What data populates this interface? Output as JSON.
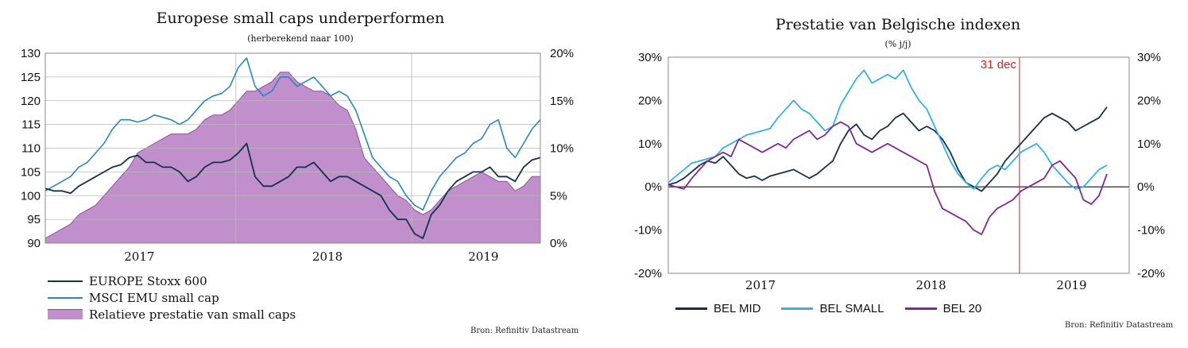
{
  "chart_data": [
    {
      "type": "area+line",
      "title": "Europese small caps underperformen",
      "subtitle": "(herberekend naar 100)",
      "ylim_left": [
        90,
        130
      ],
      "yticks_left": [
        "90",
        "95",
        "100",
        "105",
        "110",
        "115",
        "120",
        "125",
        "130"
      ],
      "ylim_right": [
        0,
        20
      ],
      "yticks_right": [
        "0%",
        "5%",
        "10%",
        "15%",
        "20%"
      ],
      "x_labels": [
        "2017",
        "2018",
        "2019"
      ],
      "grid": true,
      "legend_position": "bottom-left",
      "series": [
        {
          "name": "EUROPE Stoxx 600",
          "axis": "left",
          "color": "#14304f",
          "values": [
            101.5,
            101,
            101,
            100.5,
            102,
            103,
            104,
            105,
            106,
            106.5,
            108,
            108.5,
            107,
            107,
            106,
            106,
            105,
            103,
            104,
            106,
            107,
            107,
            107.5,
            109,
            111,
            104,
            102,
            102,
            103,
            104,
            106,
            106,
            107,
            105,
            103,
            104,
            104,
            103,
            102,
            101,
            100,
            97,
            95,
            95,
            92,
            91,
            96,
            98,
            101,
            103,
            104,
            105,
            105,
            106,
            104,
            104,
            103,
            106,
            107.5,
            108
          ]
        },
        {
          "name": "MSCI EMU small cap",
          "axis": "left",
          "color": "#2a86ba",
          "values": [
            101,
            102,
            103,
            104,
            106,
            107,
            109,
            111,
            114,
            116,
            116,
            115.5,
            116,
            117,
            116.5,
            116,
            115,
            116,
            118,
            120,
            121,
            121.5,
            123,
            127,
            129,
            123,
            121,
            122,
            125,
            125,
            123,
            124,
            125,
            123,
            121,
            122,
            121,
            118,
            113,
            108,
            106,
            104,
            103,
            100,
            98,
            97,
            101,
            104,
            106,
            108,
            109,
            111,
            112,
            115,
            116,
            110,
            108,
            111,
            114,
            116
          ]
        },
        {
          "name": "Relatieve prestatie van small caps",
          "axis": "right",
          "color": "#c08fcc",
          "stroke": "#8d4f9b",
          "values": [
            0.5,
            1,
            1.5,
            2,
            3,
            3.5,
            4,
            5,
            6,
            7,
            8,
            9.5,
            10,
            10.5,
            11,
            11.5,
            11.5,
            11.5,
            12,
            13,
            13.5,
            13.5,
            14,
            15,
            16,
            16,
            16.5,
            17,
            18,
            18,
            17,
            16.5,
            16,
            16,
            15.5,
            14.5,
            14,
            12,
            9,
            8,
            7,
            6,
            5,
            4.5,
            3.5,
            3,
            3.5,
            4.5,
            5.5,
            6,
            6.5,
            7,
            7.5,
            7,
            6.5,
            6.5,
            5.5,
            6,
            7,
            7
          ]
        }
      ]
    },
    {
      "type": "line",
      "title": "Prestatie van Belgische indexen",
      "subtitle": "(% j/j)",
      "ylim": [
        -20,
        30
      ],
      "yticks_left": [
        "-20%",
        "-10%",
        "0%",
        "10%",
        "20%",
        "30%"
      ],
      "yticks_right": [
        "-20%",
        "-10%",
        "0%",
        "10%",
        "20%",
        "30%"
      ],
      "x_labels": [
        "2017",
        "2018",
        "2019"
      ],
      "grid": true,
      "legend_position": "bottom",
      "annotation": {
        "label": "31 dec",
        "color": "#cc2222"
      },
      "series": [
        {
          "name": "BEL MID",
          "color": "#14304f",
          "values": [
            0.5,
            1,
            2,
            3.5,
            5,
            6,
            5.5,
            7,
            5,
            3,
            2,
            2.5,
            1.5,
            2.5,
            3,
            3.5,
            4,
            3,
            2,
            3,
            4.5,
            6,
            10,
            13,
            14.5,
            12,
            11,
            13,
            14,
            16,
            17,
            15,
            13,
            14,
            13,
            11,
            8,
            4,
            1,
            0,
            -1,
            1,
            3,
            6,
            8,
            10,
            12,
            14,
            16,
            17,
            16,
            15,
            13,
            14,
            15,
            16,
            18.5
          ]
        },
        {
          "name": "BEL SMALL",
          "color": "#35b0e0",
          "values": [
            1,
            2.5,
            4,
            5.5,
            6,
            6.5,
            7,
            9,
            10,
            11,
            12,
            12.5,
            13,
            13.5,
            16,
            18,
            20,
            18,
            17,
            15,
            13,
            14,
            19,
            22,
            25,
            27,
            24,
            25,
            26,
            25,
            27,
            23,
            20,
            18,
            14,
            10,
            6,
            3,
            1,
            -0.5,
            2,
            4,
            5,
            4,
            6,
            8,
            9,
            10,
            8,
            5,
            3,
            1,
            -0.5,
            0,
            2,
            4,
            5
          ]
        },
        {
          "name": "BEL 20",
          "color": "#82288f",
          "values": [
            0.5,
            0,
            -0.5,
            2,
            4,
            6,
            7,
            8,
            7,
            11,
            10,
            9,
            8,
            9,
            10,
            9,
            11,
            12,
            13,
            11,
            12,
            14,
            15,
            14,
            10,
            9,
            8,
            9,
            10,
            9,
            8,
            7,
            6,
            5,
            -1,
            -5,
            -6,
            -7,
            -8,
            -10,
            -11,
            -7,
            -5,
            -4,
            -3,
            -1,
            0,
            1,
            2,
            5,
            6,
            4,
            2,
            -3,
            -4,
            -2,
            3
          ]
        }
      ]
    }
  ],
  "legend_left": {
    "items": [
      {
        "label": "EUROPE Stoxx 600",
        "kind": "line",
        "color": "#14304f"
      },
      {
        "label": "MSCI EMU small cap",
        "kind": "line",
        "color": "#2a86ba"
      },
      {
        "label": "Relatieve prestatie van small caps",
        "kind": "area",
        "color": "#c08fcc"
      }
    ]
  },
  "legend_right": {
    "items": [
      {
        "label": "BEL MID",
        "color": "#14304f"
      },
      {
        "label": "BEL SMALL",
        "color": "#35b0e0"
      },
      {
        "label": "BEL 20",
        "color": "#82288f"
      }
    ]
  },
  "source_left": "Bron: Refinitiv Datastream",
  "source_right": "Bron: Refinitiv Datastream"
}
